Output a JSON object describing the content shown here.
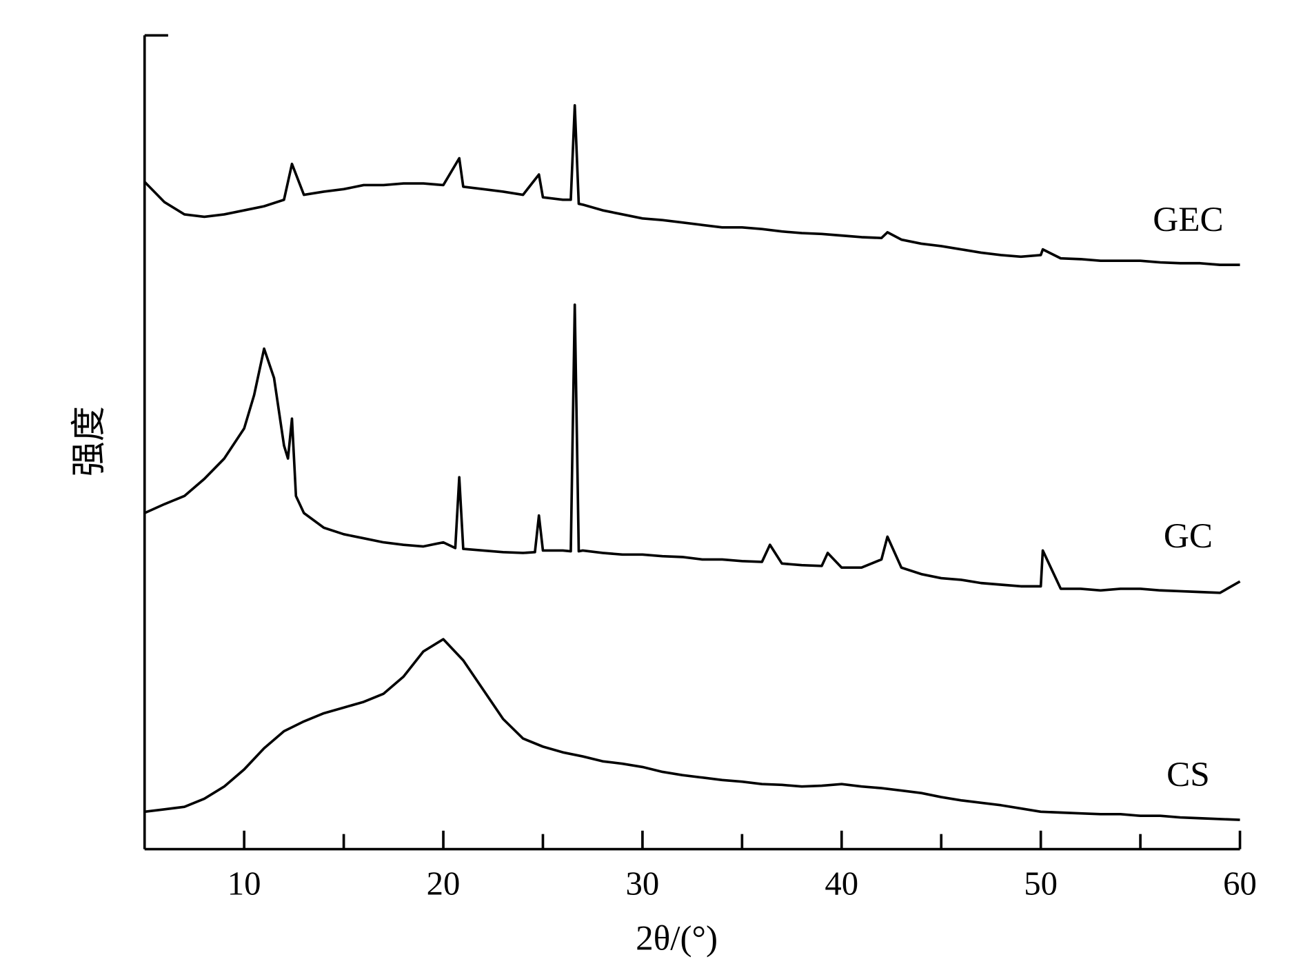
{
  "chart_data": {
    "type": "line",
    "xlabel": "2θ/(°)",
    "ylabel": "强度",
    "xlim": [
      5,
      60
    ],
    "ylim": [
      0,
      100
    ],
    "xticks": [
      10,
      20,
      30,
      40,
      50,
      60
    ],
    "xminorticks": [
      15,
      25,
      35,
      45,
      55
    ],
    "series": [
      {
        "name": "GEC",
        "color": "#000000",
        "x": [
          5,
          6,
          7,
          8,
          9,
          10,
          11,
          12,
          12.4,
          13,
          14,
          15,
          16,
          17,
          18,
          19,
          20,
          20.8,
          21,
          22,
          23,
          24,
          24.8,
          25,
          26,
          26.4,
          26.6,
          26.8,
          27,
          28,
          29,
          30,
          31,
          32,
          33,
          34,
          35,
          36,
          37,
          38,
          39,
          40,
          41,
          42,
          42.3,
          43,
          44,
          45,
          46,
          47,
          48,
          49,
          50,
          50.1,
          51,
          52,
          53,
          54,
          55,
          56,
          57,
          58,
          59,
          60
        ],
        "values": [
          82,
          79.5,
          78,
          77.7,
          78,
          78.5,
          79,
          79.8,
          84.2,
          80.4,
          80.8,
          81.1,
          81.6,
          81.6,
          81.8,
          81.8,
          81.6,
          84.9,
          81.4,
          81.1,
          80.8,
          80.4,
          82.9,
          80.1,
          79.8,
          79.8,
          91.4,
          79.3,
          79.2,
          78.5,
          78,
          77.5,
          77.3,
          77,
          76.7,
          76.4,
          76.4,
          76.2,
          75.9,
          75.7,
          75.6,
          75.4,
          75.2,
          75.1,
          75.8,
          74.9,
          74.4,
          74.1,
          73.7,
          73.3,
          73,
          72.8,
          73,
          73.7,
          72.6,
          72.5,
          72.3,
          72.3,
          72.3,
          72.1,
          72,
          72,
          71.8,
          71.8
        ]
      },
      {
        "name": "GC",
        "color": "#000000",
        "x": [
          5,
          6,
          7,
          8,
          9,
          10,
          10.5,
          11,
          11.5,
          12,
          12.2,
          12.4,
          12.6,
          13,
          14,
          15,
          16,
          17,
          18,
          19,
          20,
          20.6,
          20.8,
          21,
          22,
          23,
          24,
          24.6,
          24.8,
          25,
          26,
          26.4,
          26.6,
          26.8,
          27,
          28,
          29,
          30,
          31,
          32,
          33,
          34,
          35,
          36,
          36.4,
          37,
          38,
          39,
          39.3,
          40,
          41,
          42,
          42.3,
          43,
          44,
          45,
          46,
          47,
          48,
          49,
          50,
          50.1,
          51,
          52,
          53,
          54,
          55,
          56,
          57,
          58,
          59,
          60
        ],
        "values": [
          41.3,
          42.4,
          43.4,
          45.5,
          48,
          51.7,
          55.8,
          61.5,
          57.9,
          49.6,
          48,
          52.9,
          43.4,
          41.3,
          39.5,
          38.7,
          38.2,
          37.7,
          37.4,
          37.2,
          37.7,
          37,
          45.7,
          36.9,
          36.7,
          36.5,
          36.4,
          36.5,
          41,
          36.7,
          36.7,
          36.6,
          66.9,
          36.6,
          36.7,
          36.4,
          36.2,
          36.2,
          36,
          35.9,
          35.6,
          35.6,
          35.4,
          35.3,
          37.4,
          35.1,
          34.9,
          34.8,
          36.4,
          34.6,
          34.6,
          35.6,
          38.4,
          34.6,
          33.8,
          33.3,
          33.1,
          32.7,
          32.5,
          32.3,
          32.3,
          36.7,
          32,
          32,
          31.8,
          32,
          32,
          31.8,
          31.7,
          31.6,
          31.5,
          32.9
        ]
      },
      {
        "name": "CS",
        "color": "#000000",
        "x": [
          5,
          6,
          7,
          8,
          9,
          10,
          11,
          12,
          13,
          14,
          15,
          16,
          17,
          18,
          19,
          20,
          21,
          22,
          23,
          24,
          25,
          26,
          27,
          28,
          29,
          30,
          31,
          32,
          33,
          34,
          35,
          36,
          37,
          38,
          39,
          40,
          41,
          42,
          43,
          44,
          45,
          46,
          47,
          48,
          49,
          50,
          51,
          52,
          53,
          54,
          55,
          56,
          57,
          58,
          59,
          60
        ],
        "values": [
          4.6,
          4.9,
          5.2,
          6.2,
          7.7,
          9.8,
          12.4,
          14.5,
          15.7,
          16.7,
          17.4,
          18.1,
          19.1,
          21.2,
          24.3,
          25.8,
          23.2,
          19.6,
          16,
          13.6,
          12.6,
          11.9,
          11.4,
          10.8,
          10.5,
          10.1,
          9.5,
          9.1,
          8.8,
          8.5,
          8.3,
          8,
          7.9,
          7.7,
          7.8,
          8,
          7.7,
          7.5,
          7.2,
          6.9,
          6.4,
          6,
          5.7,
          5.4,
          5,
          4.6,
          4.5,
          4.4,
          4.3,
          4.3,
          4.1,
          4.1,
          3.9,
          3.8,
          3.7,
          3.6
        ]
      }
    ]
  }
}
